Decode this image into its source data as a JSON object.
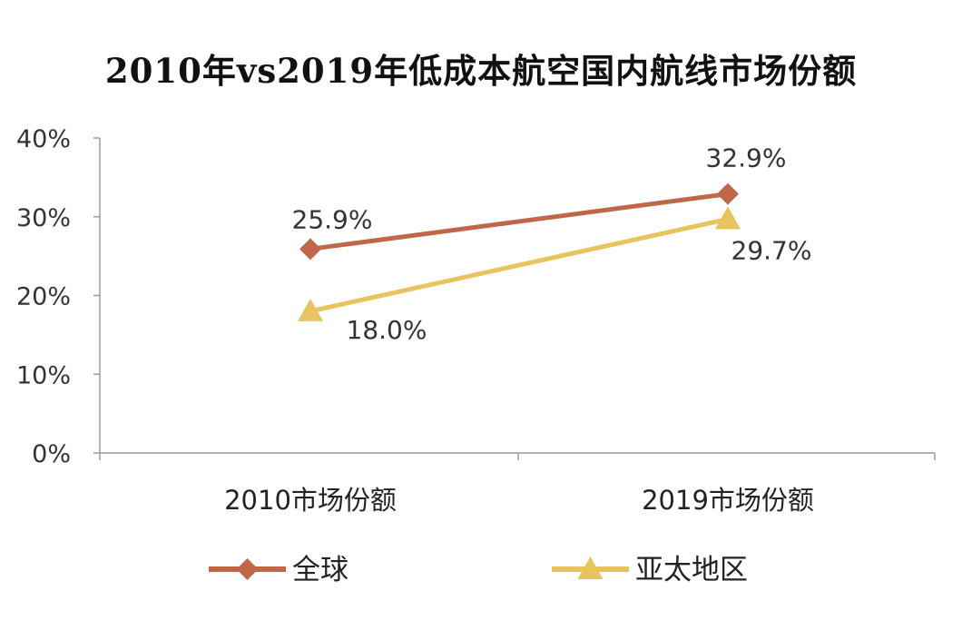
{
  "chart_data": {
    "type": "line",
    "title": "2010年vs2019年低成本航空国内航线市场份额",
    "xlabel": "",
    "ylabel": "",
    "categories": [
      "2010市场份额",
      "2019市场份额"
    ],
    "ylim": [
      0,
      40
    ],
    "yticks": [
      0,
      10,
      20,
      30,
      40
    ],
    "ytick_labels": [
      "0%",
      "10%",
      "20%",
      "30%",
      "40%"
    ],
    "grid": false,
    "legend_position": "bottom",
    "series": [
      {
        "name": "全球",
        "values": [
          25.9,
          32.9
        ],
        "labels": [
          "25.9%",
          "32.9%"
        ],
        "color": "#C0674A",
        "marker": "diamond"
      },
      {
        "name": "亚太地区",
        "values": [
          18.0,
          29.7
        ],
        "labels": [
          "18.0%",
          "29.7%"
        ],
        "color": "#E8C45E",
        "marker": "triangle"
      }
    ]
  }
}
